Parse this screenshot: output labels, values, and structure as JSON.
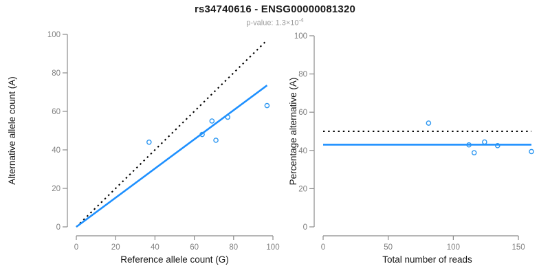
{
  "header": {
    "title": "rs34740616 - ENSG00000081320",
    "pvalue_prefix": "p-value: ",
    "pvalue_mantissa": "1.3×10",
    "pvalue_exponent": "-4"
  },
  "colors": {
    "accent_blue": "#1e90ff",
    "point_blue": "#2b96f1",
    "dotted_black": "#000000",
    "axis_gray": "#8a8a8a",
    "tick_label_gray": "#808080",
    "label_black": "#151515"
  },
  "chart_data": [
    {
      "type": "scatter",
      "title": "",
      "xlabel": "Reference allele count (G)",
      "ylabel": "Alternative allele count (A)",
      "xlim": [
        0,
        100
      ],
      "ylim": [
        0,
        100
      ],
      "xticks": [
        0,
        20,
        40,
        60,
        80,
        100
      ],
      "yticks": [
        0,
        20,
        40,
        60,
        80,
        100
      ],
      "grid": false,
      "legend": "none",
      "points": [
        [
          37,
          44
        ],
        [
          64,
          48
        ],
        [
          69,
          55
        ],
        [
          71,
          45
        ],
        [
          77,
          57
        ],
        [
          97,
          63
        ]
      ],
      "lines": [
        {
          "name": "identity-line",
          "style": "dotted",
          "color": "#000000",
          "x": [
            0,
            97
          ],
          "y": [
            0,
            97
          ]
        },
        {
          "name": "fitted-ratio-line",
          "style": "solid",
          "color": "#1e90ff",
          "x": [
            0,
            97
          ],
          "y": [
            0,
            73.5
          ]
        }
      ]
    },
    {
      "type": "scatter",
      "title": "",
      "xlabel": "Total number of reads",
      "ylabel": "Percentage alternative (A)",
      "xlim": [
        0,
        160
      ],
      "ylim": [
        0,
        100
      ],
      "xticks": [
        0,
        50,
        100,
        150
      ],
      "yticks": [
        0,
        20,
        40,
        60,
        80,
        100
      ],
      "grid": false,
      "legend": "none",
      "points": [
        [
          81,
          54.3
        ],
        [
          112,
          42.9
        ],
        [
          124,
          44.4
        ],
        [
          116,
          38.8
        ],
        [
          134,
          42.5
        ],
        [
          160,
          39.4
        ]
      ],
      "lines": [
        {
          "name": "expected-50-percent-line",
          "style": "dotted",
          "color": "#000000",
          "x": [
            0,
            160
          ],
          "y": [
            50,
            50
          ]
        },
        {
          "name": "mean-percentage-line",
          "style": "solid",
          "color": "#1e90ff",
          "x": [
            0,
            160
          ],
          "y": [
            43,
            43
          ]
        }
      ]
    }
  ]
}
